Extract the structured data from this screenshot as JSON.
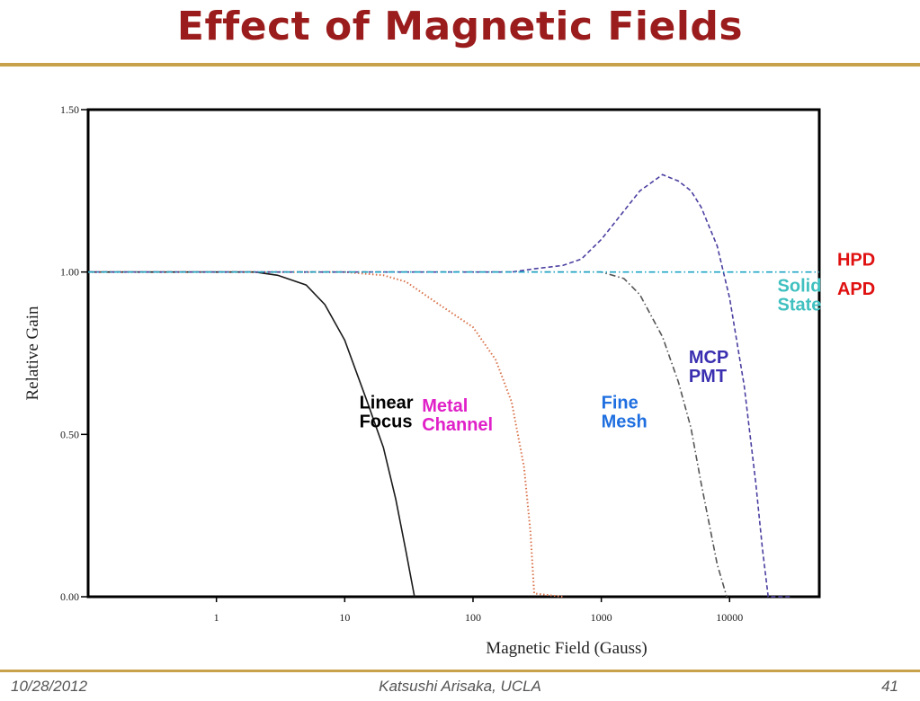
{
  "slide": {
    "title": "Effect of Magnetic Fields",
    "footer_date": "10/28/2012",
    "footer_author": "Katsushi Arisaka, UCLA",
    "page_number": "41"
  },
  "colors": {
    "title": "#9b1c1c",
    "rule": "#c8a24a"
  },
  "chart_data": {
    "type": "line",
    "title": "",
    "xlabel": "Magnetic Field (Gauss)",
    "ylabel": "Relative Gain",
    "x_scale": "log",
    "xlim": [
      0.1,
      50000
    ],
    "ylim": [
      0,
      1.5
    ],
    "x_ticks": [
      {
        "value": 1,
        "label": "1"
      },
      {
        "value": 10,
        "label": "10"
      },
      {
        "value": 100,
        "label": "100"
      },
      {
        "value": 1000,
        "label": "1000"
      },
      {
        "value": 10000,
        "label": "10000"
      }
    ],
    "y_ticks": [
      {
        "value": 0,
        "label": "0.00"
      },
      {
        "value": 0.5,
        "label": "0.50"
      },
      {
        "value": 1.0,
        "label": "1.00"
      },
      {
        "value": 1.5,
        "label": "1.50"
      }
    ],
    "grid": false,
    "series": [
      {
        "name": "Linear Focus",
        "color": "#1a1a1a",
        "dash": "solid",
        "points": [
          [
            0.1,
            1.0
          ],
          [
            2,
            1.0
          ],
          [
            3,
            0.99
          ],
          [
            5,
            0.96
          ],
          [
            7,
            0.9
          ],
          [
            10,
            0.79
          ],
          [
            15,
            0.6
          ],
          [
            20,
            0.46
          ],
          [
            25,
            0.3
          ],
          [
            30,
            0.14
          ],
          [
            35,
            0.0
          ]
        ]
      },
      {
        "name": "Metal Channel",
        "color": "#d9724a",
        "dash": "dotted",
        "points": [
          [
            0.1,
            1.0
          ],
          [
            10,
            1.0
          ],
          [
            20,
            0.99
          ],
          [
            30,
            0.97
          ],
          [
            50,
            0.91
          ],
          [
            100,
            0.83
          ],
          [
            150,
            0.73
          ],
          [
            200,
            0.6
          ],
          [
            250,
            0.4
          ],
          [
            280,
            0.2
          ],
          [
            300,
            0.01
          ],
          [
            500,
            0.0
          ]
        ]
      },
      {
        "name": "Fine Mesh",
        "color": "#555555",
        "dash": "dashdot",
        "points": [
          [
            0.1,
            1.0
          ],
          [
            1000,
            1.0
          ],
          [
            1500,
            0.98
          ],
          [
            2000,
            0.93
          ],
          [
            3000,
            0.8
          ],
          [
            4000,
            0.66
          ],
          [
            5000,
            0.52
          ],
          [
            6000,
            0.35
          ],
          [
            8000,
            0.1
          ],
          [
            9500,
            0.0
          ]
        ]
      },
      {
        "name": "MCP PMT",
        "color": "#4a3fa0",
        "dash": "dashed",
        "points": [
          [
            0.1,
            1.0
          ],
          [
            200,
            1.0
          ],
          [
            300,
            1.01
          ],
          [
            500,
            1.02
          ],
          [
            700,
            1.04
          ],
          [
            1000,
            1.1
          ],
          [
            2000,
            1.25
          ],
          [
            3000,
            1.3
          ],
          [
            4000,
            1.28
          ],
          [
            5000,
            1.25
          ],
          [
            6000,
            1.2
          ],
          [
            8000,
            1.08
          ],
          [
            10000,
            0.92
          ],
          [
            13000,
            0.65
          ],
          [
            16000,
            0.35
          ],
          [
            18000,
            0.15
          ],
          [
            20000,
            0.0
          ],
          [
            30000,
            0.0
          ]
        ]
      },
      {
        "name": "HPD / APD / Solid State",
        "color": "#1fa5c5",
        "dash": "dashdot",
        "points": [
          [
            0.1,
            1.0
          ],
          [
            50000,
            1.0
          ]
        ]
      }
    ],
    "annotations": [
      {
        "lines": [
          "Linear",
          "Focus"
        ],
        "color": "#000000",
        "x": 13,
        "y": 0.58,
        "align": "start"
      },
      {
        "lines": [
          "Metal",
          "Channel"
        ],
        "color": "#e020c8",
        "x": 40,
        "y": 0.57,
        "align": "start"
      },
      {
        "lines": [
          "Fine",
          "Mesh"
        ],
        "color": "#1f6fe0",
        "x": 1000,
        "y": 0.58,
        "align": "start"
      },
      {
        "lines": [
          "MCP",
          "PMT"
        ],
        "color": "#3a2fb0",
        "x": 4800,
        "y": 0.72,
        "align": "start"
      },
      {
        "lines": [
          "Solid",
          "State"
        ],
        "color": "#40c0c0",
        "x": 52000,
        "y": 0.94,
        "align": "end"
      },
      {
        "lines": [
          "HPD"
        ],
        "color": "#e01010",
        "x": 69000,
        "y": 1.02,
        "align": "start"
      },
      {
        "lines": [
          "APD"
        ],
        "color": "#e01010",
        "x": 69000,
        "y": 0.93,
        "align": "start"
      }
    ]
  }
}
